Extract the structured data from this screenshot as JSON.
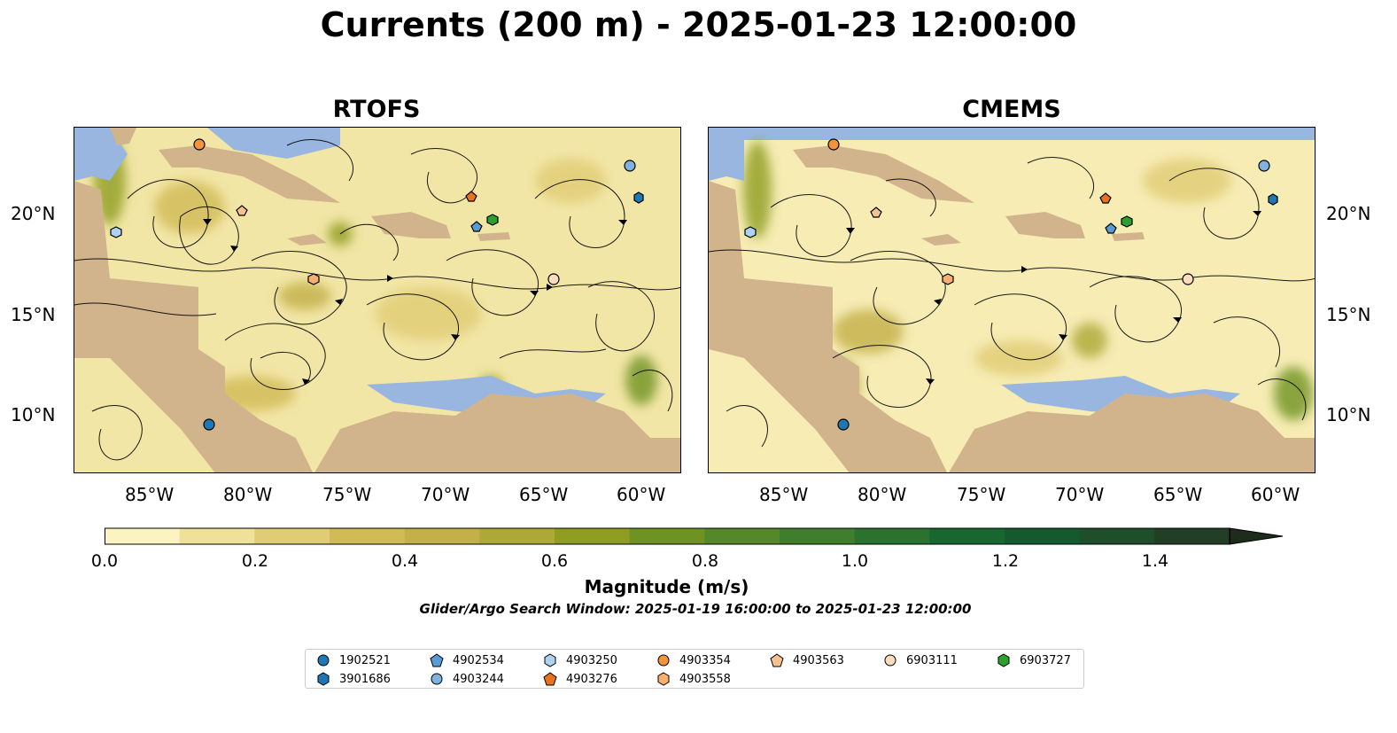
{
  "title": "Currents (200 m) - 2025-01-23 12:00:00",
  "panels": [
    {
      "title": "RTOFS"
    },
    {
      "title": "CMEMS"
    }
  ],
  "axes": {
    "lon_ticks": [
      "85°W",
      "80°W",
      "75°W",
      "70°W",
      "65°W",
      "60°W"
    ],
    "lat_ticks": [
      "20°N",
      "15°N",
      "10°N"
    ]
  },
  "colorbar": {
    "label": "Magnitude (m/s)",
    "ticks": [
      "0.0",
      "0.2",
      "0.4",
      "0.6",
      "0.8",
      "1.0",
      "1.2",
      "1.4"
    ],
    "colors": [
      "#fbf3c0",
      "#efe09a",
      "#e0cc74",
      "#d1bb57",
      "#c3b04a",
      "#aea838",
      "#8f9e22",
      "#6f9322",
      "#55882a",
      "#3f7e2c",
      "#2a722e",
      "#186630",
      "#155a2e",
      "#1f4e2a",
      "#223e24",
      "#1e2d1b"
    ],
    "extend": "max"
  },
  "search_window": "Glider/Argo Search Window: 2025-01-19 16:00:00 to 2025-01-23 12:00:00",
  "legend": [
    {
      "id": "1902521",
      "color": "#1f77b4",
      "marker": "circle"
    },
    {
      "id": "3901686",
      "color": "#1f77b4",
      "marker": "hexagon"
    },
    {
      "id": "4902534",
      "color": "#5a9bd4",
      "marker": "pentagon"
    },
    {
      "id": "4903244",
      "color": "#7fb2e0",
      "marker": "circle"
    },
    {
      "id": "4903250",
      "color": "#aed3f0",
      "marker": "hexagon"
    },
    {
      "id": "4903276",
      "color": "#e8731a",
      "marker": "pentagon"
    },
    {
      "id": "4903354",
      "color": "#f4933a",
      "marker": "circle"
    },
    {
      "id": "4903558",
      "color": "#f8b070",
      "marker": "hexagon"
    },
    {
      "id": "4903563",
      "color": "#f8c08e",
      "marker": "pentagon"
    },
    {
      "id": "6903111",
      "color": "#fbdcbc",
      "marker": "circle"
    },
    {
      "id": "6903727",
      "color": "#2ca02c",
      "marker": "hexagon"
    }
  ],
  "colors": {
    "land": "#d2b48c",
    "ocean_low": "#fbf3c0",
    "no_data_water": "#98b6e0"
  }
}
